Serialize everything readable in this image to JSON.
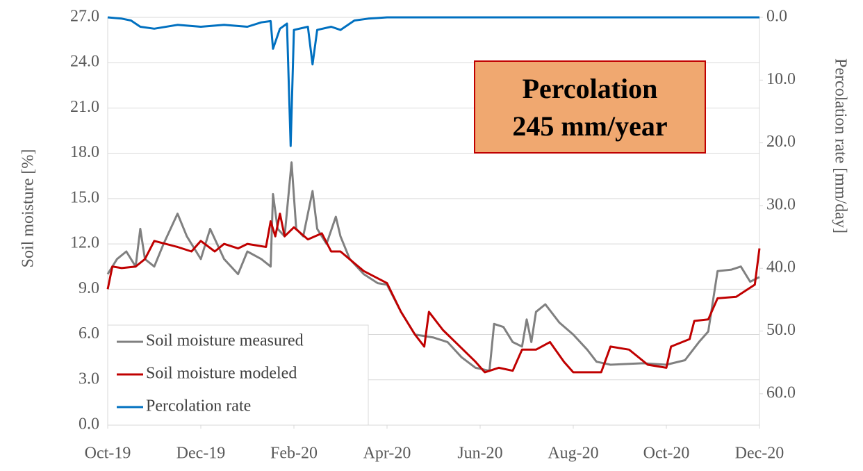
{
  "chart_data": {
    "type": "line",
    "y_label": "Soil moisture [%]",
    "y2_label": "Percolation rate [mm/day]",
    "annotation": [
      "Percolation",
      "245 mm/year"
    ],
    "xlim": [
      0,
      14
    ],
    "xticks": [
      {
        "value": 0,
        "label": "Oct-19"
      },
      {
        "value": 2,
        "label": "Dec-19"
      },
      {
        "value": 4,
        "label": "Feb-20"
      },
      {
        "value": 6,
        "label": "Apr-20"
      },
      {
        "value": 8,
        "label": "Jun-20"
      },
      {
        "value": 10,
        "label": "Aug-20"
      },
      {
        "value": 12,
        "label": "Oct-20"
      },
      {
        "value": 14,
        "label": "Dec-20"
      }
    ],
    "ylim": [
      0,
      27
    ],
    "yticks": [
      {
        "value": 0,
        "label": "0.0"
      },
      {
        "value": 3,
        "label": "3.0"
      },
      {
        "value": 6,
        "label": "6.0"
      },
      {
        "value": 9,
        "label": "9.0"
      },
      {
        "value": 12,
        "label": "12.0"
      },
      {
        "value": 15,
        "label": "15.0"
      },
      {
        "value": 18,
        "label": "18.0"
      },
      {
        "value": 21,
        "label": "21.0"
      },
      {
        "value": 24,
        "label": "24.0"
      },
      {
        "value": 27,
        "label": "27.0"
      }
    ],
    "y2lim": [
      65,
      0
    ],
    "y2ticks": [
      {
        "value": 0,
        "label": "0.0"
      },
      {
        "value": 10,
        "label": "10.0"
      },
      {
        "value": 20,
        "label": "20.0"
      },
      {
        "value": 30,
        "label": "30.0"
      },
      {
        "value": 40,
        "label": "40.0"
      },
      {
        "value": 50,
        "label": "50.0"
      },
      {
        "value": 60,
        "label": "60.0"
      }
    ],
    "grid": true,
    "legend": "lower left",
    "series": [
      {
        "name": "Soil moisture measured",
        "color": "#808080",
        "x": [
          0,
          0.2,
          0.4,
          0.6,
          0.7,
          0.8,
          1.0,
          1.2,
          1.5,
          1.7,
          2.0,
          2.2,
          2.5,
          2.8,
          3.0,
          3.3,
          3.5,
          3.55,
          3.65,
          3.8,
          3.95,
          4.05,
          4.2,
          4.4,
          4.5,
          4.7,
          4.9,
          5.0,
          5.2,
          5.5,
          5.8,
          6.0,
          6.3,
          6.6,
          7.0,
          7.3,
          7.6,
          7.9,
          8.2,
          8.3,
          8.5,
          8.7,
          8.9,
          9.0,
          9.1,
          9.2,
          9.4,
          9.7,
          10.0,
          10.3,
          10.5,
          10.8,
          11.5,
          12.0,
          12.4,
          12.7,
          12.9,
          13.1,
          13.4,
          13.6,
          13.8,
          14.0
        ],
        "values": [
          10,
          11,
          11.5,
          10.5,
          13,
          11,
          10.5,
          12,
          14,
          12.5,
          11,
          13,
          11,
          10,
          11.5,
          11,
          10.5,
          15.3,
          13,
          12.5,
          17.4,
          13,
          12.5,
          15.5,
          13,
          12,
          13.8,
          12.5,
          11,
          10,
          9.4,
          9.3,
          7.5,
          6,
          5.8,
          5.5,
          4.5,
          3.8,
          3.6,
          6.7,
          6.5,
          5.5,
          5.2,
          7,
          5.5,
          7.5,
          8,
          6.8,
          6,
          5,
          4.2,
          4,
          4.1,
          4,
          4.3,
          5.5,
          6.2,
          10.2,
          10.3,
          10.5,
          9.5,
          9.8
        ]
      },
      {
        "name": "Soil moisture modeled",
        "color": "#c00000",
        "x": [
          0,
          0.1,
          0.3,
          0.6,
          0.8,
          1.0,
          1.5,
          1.8,
          2.0,
          2.3,
          2.5,
          2.8,
          3.0,
          3.4,
          3.5,
          3.6,
          3.7,
          3.8,
          4.0,
          4.3,
          4.6,
          4.8,
          5.0,
          5.5,
          6.0,
          6.3,
          6.6,
          6.8,
          6.9,
          7.2,
          7.5,
          7.9,
          8.1,
          8.4,
          8.7,
          8.9,
          9.2,
          9.5,
          9.8,
          10.0,
          10.6,
          10.8,
          11.2,
          11.6,
          12.0,
          12.1,
          12.5,
          12.6,
          12.9,
          13.1,
          13.5,
          13.9,
          14.0
        ],
        "values": [
          9,
          10.5,
          10.4,
          10.5,
          11,
          12.2,
          11.8,
          11.5,
          12.2,
          11.5,
          12,
          11.7,
          12,
          11.8,
          13.5,
          12.5,
          14,
          12.5,
          13.1,
          12.3,
          12.7,
          11.5,
          11.5,
          10.2,
          9.4,
          7.5,
          6,
          5.2,
          7.5,
          6.3,
          5.4,
          4.2,
          3.5,
          3.8,
          3.6,
          5,
          5,
          5.5,
          4.2,
          3.5,
          3.5,
          5.2,
          5,
          4,
          3.8,
          5.2,
          5.7,
          6.9,
          7,
          8.4,
          8.5,
          9.3,
          11.7
        ]
      },
      {
        "name": "Percolation rate",
        "color": "#0070c0",
        "axis": "y2",
        "x": [
          0,
          0.3,
          0.5,
          0.7,
          1.0,
          1.5,
          2.0,
          2.5,
          3.0,
          3.3,
          3.5,
          3.55,
          3.7,
          3.85,
          3.93,
          4.0,
          4.3,
          4.4,
          4.5,
          4.8,
          5.0,
          5.3,
          5.6,
          6.0,
          14.0
        ],
        "values": [
          0,
          0.2,
          0.5,
          1.5,
          1.8,
          1.2,
          1.5,
          1.2,
          1.5,
          0.8,
          0.6,
          5,
          1.8,
          1,
          20.5,
          2,
          1.5,
          7.5,
          2,
          1.5,
          2,
          0.5,
          0.2,
          0,
          0
        ]
      }
    ]
  }
}
